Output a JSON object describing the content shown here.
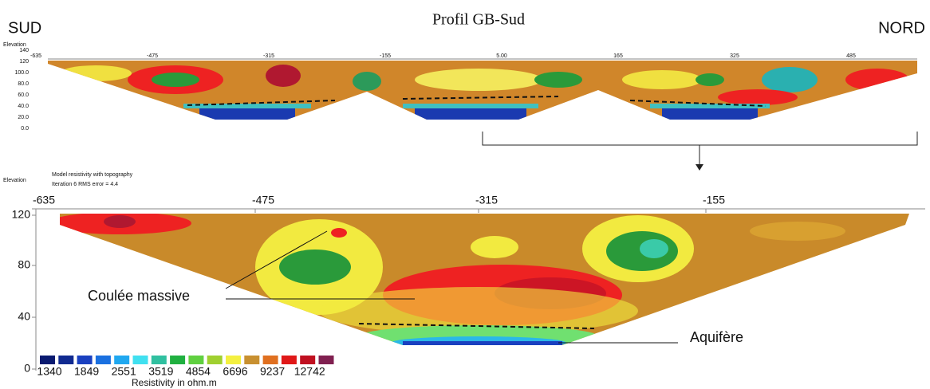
{
  "header": {
    "left": "SUD",
    "title": "Profil GB-Sud",
    "right": "NORD"
  },
  "overview": {
    "axis_title": "Elevation",
    "yticks": [
      "140",
      "120",
      "100.0",
      "80.0",
      "60.0",
      "40.0",
      "20.0",
      "0.0"
    ],
    "xticks": [
      "-635",
      "-475",
      "-315",
      "-155",
      "5.00",
      "165",
      "325",
      "485"
    ]
  },
  "section": {
    "axis_title": "Elevation",
    "note1": "Model resistivity with topography",
    "note2": "Iteration 6 RMS error = 4.4",
    "xticks": [
      "-635",
      "-475",
      "-315",
      "-155"
    ],
    "yticks": [
      "120",
      "80",
      "40",
      "0"
    ]
  },
  "annotations": {
    "lava": "Coulée massive",
    "aquifer": "Aquifère"
  },
  "colorbar": {
    "labels": [
      "1340",
      "1849",
      "2551",
      "3519",
      "4854",
      "6696",
      "9237",
      "12742"
    ],
    "title": "Resistivity in ohm.m"
  }
}
